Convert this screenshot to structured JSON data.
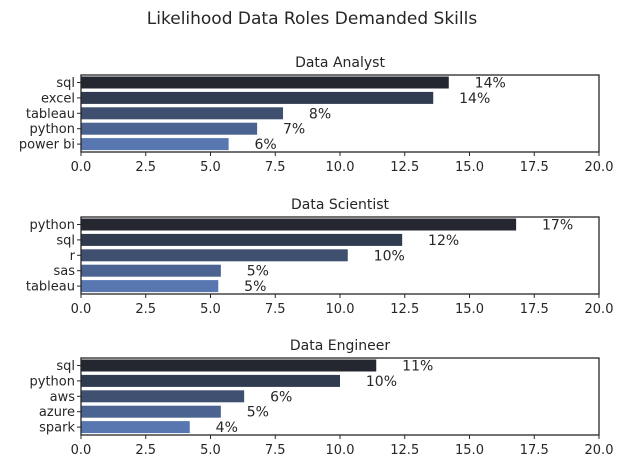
{
  "chart_data": {
    "title": "Likelihood Data Roles Demanded Skills",
    "type": "bar",
    "orientation": "horizontal",
    "xlim": [
      0,
      20
    ],
    "xticks": [
      "0.0",
      "2.5",
      "5.0",
      "7.5",
      "10.0",
      "12.5",
      "15.0",
      "17.5",
      "20.0"
    ],
    "grid": false,
    "colors": {
      "darkest": "#24272f",
      "lightest": "#5877b0"
    },
    "panels": [
      {
        "title": "Data Analyst",
        "categories": [
          "sql",
          "excel",
          "tableau",
          "python",
          "power bi"
        ],
        "values": [
          14.2,
          13.6,
          7.8,
          6.8,
          5.7
        ],
        "labels": [
          "14%",
          "14%",
          "8%",
          "7%",
          "6%"
        ]
      },
      {
        "title": "Data Scientist",
        "categories": [
          "python",
          "sql",
          "r",
          "sas",
          "tableau"
        ],
        "values": [
          16.8,
          12.4,
          10.3,
          5.4,
          5.3
        ],
        "labels": [
          "17%",
          "12%",
          "10%",
          "5%",
          "5%"
        ]
      },
      {
        "title": "Data Engineer",
        "categories": [
          "sql",
          "python",
          "aws",
          "azure",
          "spark"
        ],
        "values": [
          11.4,
          10.0,
          6.3,
          5.4,
          4.2
        ],
        "labels": [
          "11%",
          "10%",
          "6%",
          "5%",
          "4%"
        ]
      }
    ]
  }
}
